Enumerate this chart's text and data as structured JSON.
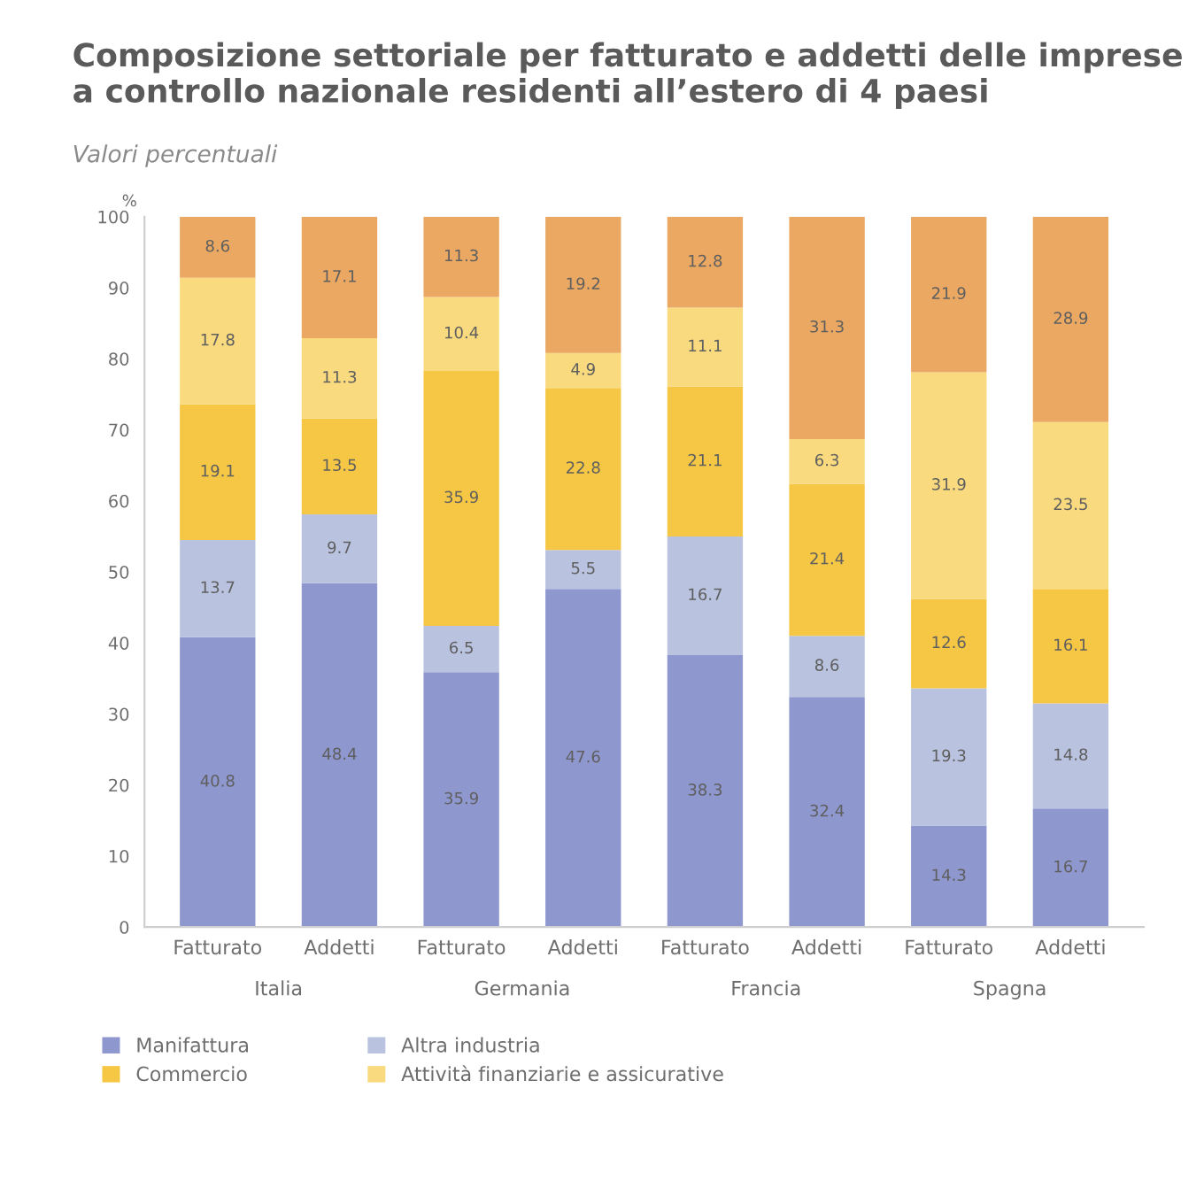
{
  "chart_data": {
    "type": "bar",
    "title": "Composizione settoriale per fatturato e addetti delle imprese a controllo nazionale residenti all’estero di 4 paesi",
    "subtitle": "Valori percentuali",
    "ylabel": "%",
    "categories": [
      "Fatturato",
      "Addetti",
      "Fatturato",
      "Addetti",
      "Fatturato",
      "Addetti",
      "Fatturato",
      "Addetti"
    ],
    "annotations": [
      "Italia",
      "Germania",
      "Francia",
      "Spagna"
    ],
    "stacked": true,
    "data_labels": true,
    "legend": "bottom",
    "ylim": [
      0,
      100
    ],
    "yticks": [
      0,
      10,
      20,
      30,
      40,
      50,
      60,
      70,
      80,
      90,
      100
    ],
    "series": [
      {
        "name": "Manifattura",
        "color": "#8f97cf",
        "values": [
          40.8,
          48.4,
          35.9,
          47.6,
          38.3,
          32.4,
          14.3,
          16.7
        ]
      },
      {
        "name": "Altra industria",
        "color": "#b9c3df",
        "values": [
          13.7,
          9.7,
          6.5,
          5.5,
          16.7,
          8.6,
          19.3,
          14.8
        ]
      },
      {
        "name": "Commercio",
        "color": "#f6c744",
        "values": [
          19.1,
          13.5,
          35.9,
          22.8,
          21.1,
          21.4,
          12.6,
          16.1
        ]
      },
      {
        "name": "Attività finanziarie e assicurative",
        "color": "#f9da7e",
        "values": [
          17.8,
          11.3,
          10.4,
          4.9,
          11.1,
          6.3,
          31.9,
          23.5
        ]
      },
      {
        "color": "#eaa862",
        "values": [
          8.6,
          17.1,
          11.3,
          19.2,
          12.8,
          31.3,
          21.9,
          28.9
        ]
      }
    ]
  }
}
